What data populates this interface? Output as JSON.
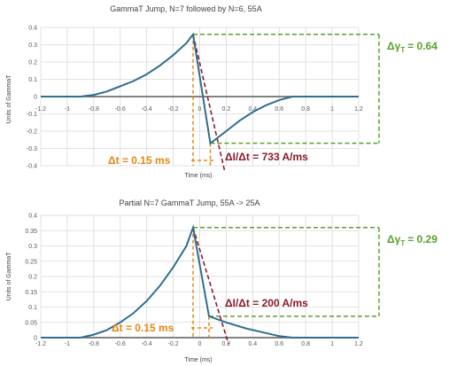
{
  "chart_data": [
    {
      "type": "line",
      "title": "GammaT Jump, N=7 followed by N=6, 55A",
      "xlabel": "Time (ms)",
      "ylabel": "Units of GammaT",
      "xlim": [
        -1.2,
        1.2
      ],
      "ylim": [
        -0.4,
        0.4
      ],
      "x_ticks": [
        "-1.2",
        "-1",
        "-0.8",
        "-0.6",
        "-0.4",
        "-0.2",
        "0",
        "0.2",
        "0.4",
        "0.6",
        "0.8",
        "1",
        "1.2"
      ],
      "y_ticks": [
        "0.4",
        "0.3",
        "0.2",
        "0.1",
        "0",
        "-0.1",
        "-0.2",
        "-0.3",
        "-0.4"
      ],
      "grid": true,
      "series": [
        {
          "values": [
            [
              -1.2,
              0
            ],
            [
              -0.9,
              0
            ],
            [
              -0.8,
              0.01
            ],
            [
              -0.7,
              0.03
            ],
            [
              -0.6,
              0.06
            ],
            [
              -0.5,
              0.09
            ],
            [
              -0.4,
              0.13
            ],
            [
              -0.3,
              0.18
            ],
            [
              -0.2,
              0.24
            ],
            [
              -0.1,
              0.31
            ],
            [
              -0.05,
              0.36
            ],
            [
              0.08,
              -0.27
            ],
            [
              0.2,
              -0.2
            ],
            [
              0.3,
              -0.14
            ],
            [
              0.4,
              -0.09
            ],
            [
              0.5,
              -0.05
            ],
            [
              0.6,
              -0.02
            ],
            [
              0.7,
              0
            ],
            [
              0.8,
              0
            ],
            [
              1.2,
              0
            ]
          ]
        }
      ],
      "annotations": {
        "delta_gamma": {
          "label": "ΔγT = 0.64",
          "main": "Δγ",
          "sub": "T",
          "value": "= 0.64",
          "color": "#5aa02c"
        },
        "delta_t": {
          "label": "Δt = 0.15 ms",
          "color": "#e5860f"
        },
        "didt": {
          "label": "ΔI/Δt = 733 A/ms",
          "color": "#8b1a2b"
        }
      }
    },
    {
      "type": "line",
      "title": "Partial N=7 GammaT Jump, 55A -> 25A",
      "xlabel": "Time (ms)",
      "ylabel": "Units of GammaT",
      "xlim": [
        -1.2,
        1.2
      ],
      "ylim": [
        0,
        0.4
      ],
      "x_ticks": [
        "-1.2",
        "-1",
        "-0.8",
        "-0.6",
        "-0.4",
        "-0.2",
        "0",
        "0.2",
        "0.4",
        "0.6",
        "0.8",
        "1",
        "1.2"
      ],
      "y_ticks": [
        "0.4",
        "0.35",
        "0.3",
        "0.25",
        "0.2",
        "0.15",
        "0.1",
        "0.05",
        "0"
      ],
      "grid": true,
      "series": [
        {
          "values": [
            [
              -1.2,
              0
            ],
            [
              -0.9,
              0
            ],
            [
              -0.8,
              0.01
            ],
            [
              -0.7,
              0.025
            ],
            [
              -0.6,
              0.05
            ],
            [
              -0.5,
              0.08
            ],
            [
              -0.4,
              0.12
            ],
            [
              -0.3,
              0.17
            ],
            [
              -0.2,
              0.23
            ],
            [
              -0.1,
              0.3
            ],
            [
              -0.05,
              0.36
            ],
            [
              0.07,
              0.07
            ],
            [
              0.2,
              0.05
            ],
            [
              0.35,
              0.03
            ],
            [
              0.5,
              0.015
            ],
            [
              0.6,
              0.005
            ],
            [
              0.7,
              0
            ],
            [
              1.2,
              0
            ]
          ]
        }
      ],
      "annotations": {
        "delta_gamma": {
          "label": "ΔγT = 0.29",
          "main": "Δγ",
          "sub": "T",
          "value": "= 0.29",
          "color": "#5aa02c"
        },
        "delta_t": {
          "label": "Δt = 0.15 ms",
          "color": "#e5860f"
        },
        "didt": {
          "label": "ΔI/Δt = 200 A/ms",
          "color": "#8b1a2b"
        }
      }
    }
  ],
  "colors": {
    "series": "#2f6e8f",
    "grid": "#d9d9d9",
    "zero_axis": "#595959",
    "text": "#595959"
  }
}
